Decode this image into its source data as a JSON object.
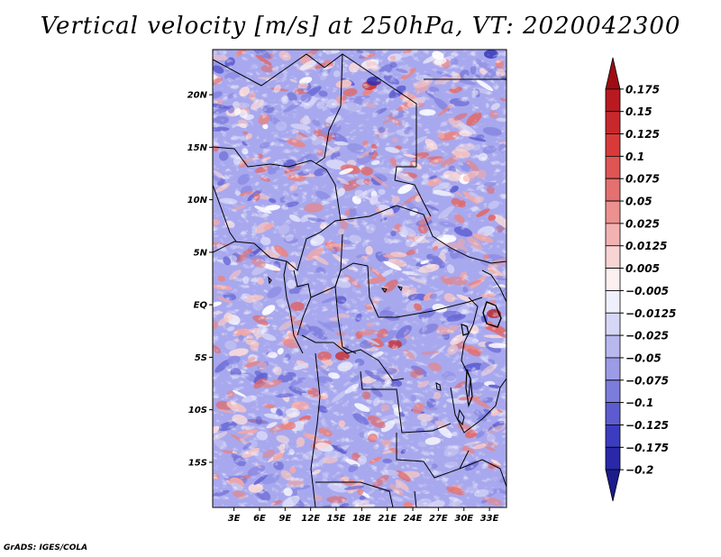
{
  "title": "Vertical velocity [m/s] at 250hPa, VT: 2020042300",
  "footer": "GrADS: IGES/COLA",
  "map": {
    "region": "Central Africa",
    "variable": "Vertical velocity",
    "units": "m/s",
    "level": "250hPa",
    "valid_time": "2020042300",
    "lat_ticks": [
      "20N",
      "15N",
      "10N",
      "5N",
      "EQ",
      "5S",
      "10S",
      "15S"
    ],
    "lon_ticks": [
      "3E",
      "6E",
      "9E",
      "12E",
      "15E",
      "18E",
      "21E",
      "24E",
      "27E",
      "30E",
      "33E"
    ]
  },
  "colorbar": {
    "labels": [
      "0.175",
      "0.15",
      "0.125",
      "0.1",
      "0.075",
      "0.05",
      "0.025",
      "0.0125",
      "0.005",
      "−0.005",
      "−0.0125",
      "−0.025",
      "−0.05",
      "−0.075",
      "−0.1",
      "−0.125",
      "−0.175",
      "−0.2"
    ],
    "colors": [
      "#9e0c14",
      "#b81a20",
      "#c8282c",
      "#d83a3a",
      "#e05454",
      "#e47070",
      "#ec9090",
      "#f2b2b2",
      "#f8d4d4",
      "#fdf0f0",
      "#f0f0fd",
      "#d6d6f6",
      "#b8b8ee",
      "#9c9ce6",
      "#7c7cdc",
      "#5c5cd0",
      "#3c3cc0",
      "#2828a8",
      "#1c1c8c"
    ]
  }
}
